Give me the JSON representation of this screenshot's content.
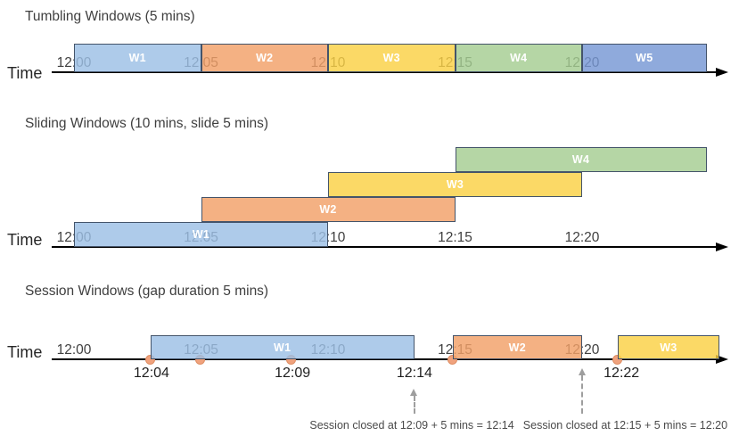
{
  "palette": {
    "bar_border": "#44546A",
    "blue_light": "#9CBFE5",
    "blue_medium": "#7697D4",
    "orange": "#F1A068",
    "yellow": "#FAD144",
    "green": "#A5CD91",
    "event_dot": "#F0A27D",
    "event_dot_border": "#DE8E64",
    "axis": "#000000",
    "title_text": "#3F3F3F",
    "tick_text": "#404040",
    "window_label_text": "#FFFFFF",
    "annotation_text": "#4A4A4A",
    "dashed_arrow": "#9E9E9E"
  },
  "sections": [
    {
      "id": "tumbling",
      "title": "Tumbling Windows (5 mins)",
      "time_label": "Time",
      "ticks": [
        {
          "label": "12:00",
          "min": 0
        },
        {
          "label": "12:05",
          "min": 5
        },
        {
          "label": "12:10",
          "min": 10
        },
        {
          "label": "12:15",
          "min": 15
        },
        {
          "label": "12:20",
          "min": 20
        }
      ],
      "windows": [
        {
          "label": "W1",
          "start_min": 0,
          "end_min": 5,
          "row": 0,
          "color": "blue_light"
        },
        {
          "label": "W2",
          "start_min": 5,
          "end_min": 10,
          "row": 0,
          "color": "orange"
        },
        {
          "label": "W3",
          "start_min": 10,
          "end_min": 15,
          "row": 0,
          "color": "yellow"
        },
        {
          "label": "W4",
          "start_min": 15,
          "end_min": 20,
          "row": 0,
          "color": "green"
        },
        {
          "label": "W5",
          "start_min": 20,
          "end_min": 24.9,
          "row": 0,
          "color": "blue_medium"
        }
      ]
    },
    {
      "id": "sliding",
      "title": "Sliding Windows (10 mins, slide 5 mins)",
      "time_label": "Time",
      "ticks": [
        {
          "label": "12:00",
          "min": 0
        },
        {
          "label": "12:05",
          "min": 5
        },
        {
          "label": "12:10",
          "min": 10
        },
        {
          "label": "12:15",
          "min": 15
        },
        {
          "label": "12:20",
          "min": 20
        }
      ],
      "windows": [
        {
          "label": "W1",
          "start_min": 0,
          "end_min": 10,
          "row": 0,
          "color": "blue_light"
        },
        {
          "label": "W2",
          "start_min": 5,
          "end_min": 15,
          "row": 1,
          "color": "orange"
        },
        {
          "label": "W3",
          "start_min": 10,
          "end_min": 20,
          "row": 2,
          "color": "yellow"
        },
        {
          "label": "W4",
          "start_min": 15,
          "end_min": 24.9,
          "row": 3,
          "color": "green"
        }
      ]
    },
    {
      "id": "session",
      "title": "Session Windows (gap duration 5 mins)",
      "time_label": "Time",
      "ticks": [
        {
          "label": "12:00",
          "min": 0
        },
        {
          "label": "12:05",
          "min": 5
        },
        {
          "label": "12:10",
          "min": 10
        },
        {
          "label": "12:15",
          "min": 15
        },
        {
          "label": "12:20",
          "min": 20
        }
      ],
      "windows": [
        {
          "label": "W1",
          "start_min": 3.0,
          "end_min": 13.4,
          "row": 0,
          "color": "blue_light"
        },
        {
          "label": "W2",
          "start_min": 14.9,
          "end_min": 20.0,
          "row": 0,
          "color": "orange"
        },
        {
          "label": "W3",
          "start_min": 21.4,
          "end_min": 25.4,
          "row": 0,
          "color": "yellow"
        }
      ],
      "events": [
        {
          "min": 3.0
        },
        {
          "min": 4.95
        },
        {
          "min": 8.55
        },
        {
          "min": 14.9
        },
        {
          "min": 21.4
        }
      ],
      "event_labels": [
        {
          "label": "12:04",
          "min": 3.05
        },
        {
          "label": "12:09",
          "min": 8.6
        },
        {
          "label": "12:14",
          "min": 13.4
        },
        {
          "label": "12:22",
          "min": 21.55
        }
      ],
      "annotations": [
        {
          "text": "Session closed at 12:09 + 5 mins = 12:14",
          "arrow_min": 13.4,
          "text_min": 13.3
        },
        {
          "text": "Session closed at 12:15 + 5 mins = 12:20",
          "arrow_min": 20.0,
          "text_min": 21.7
        }
      ]
    }
  ]
}
